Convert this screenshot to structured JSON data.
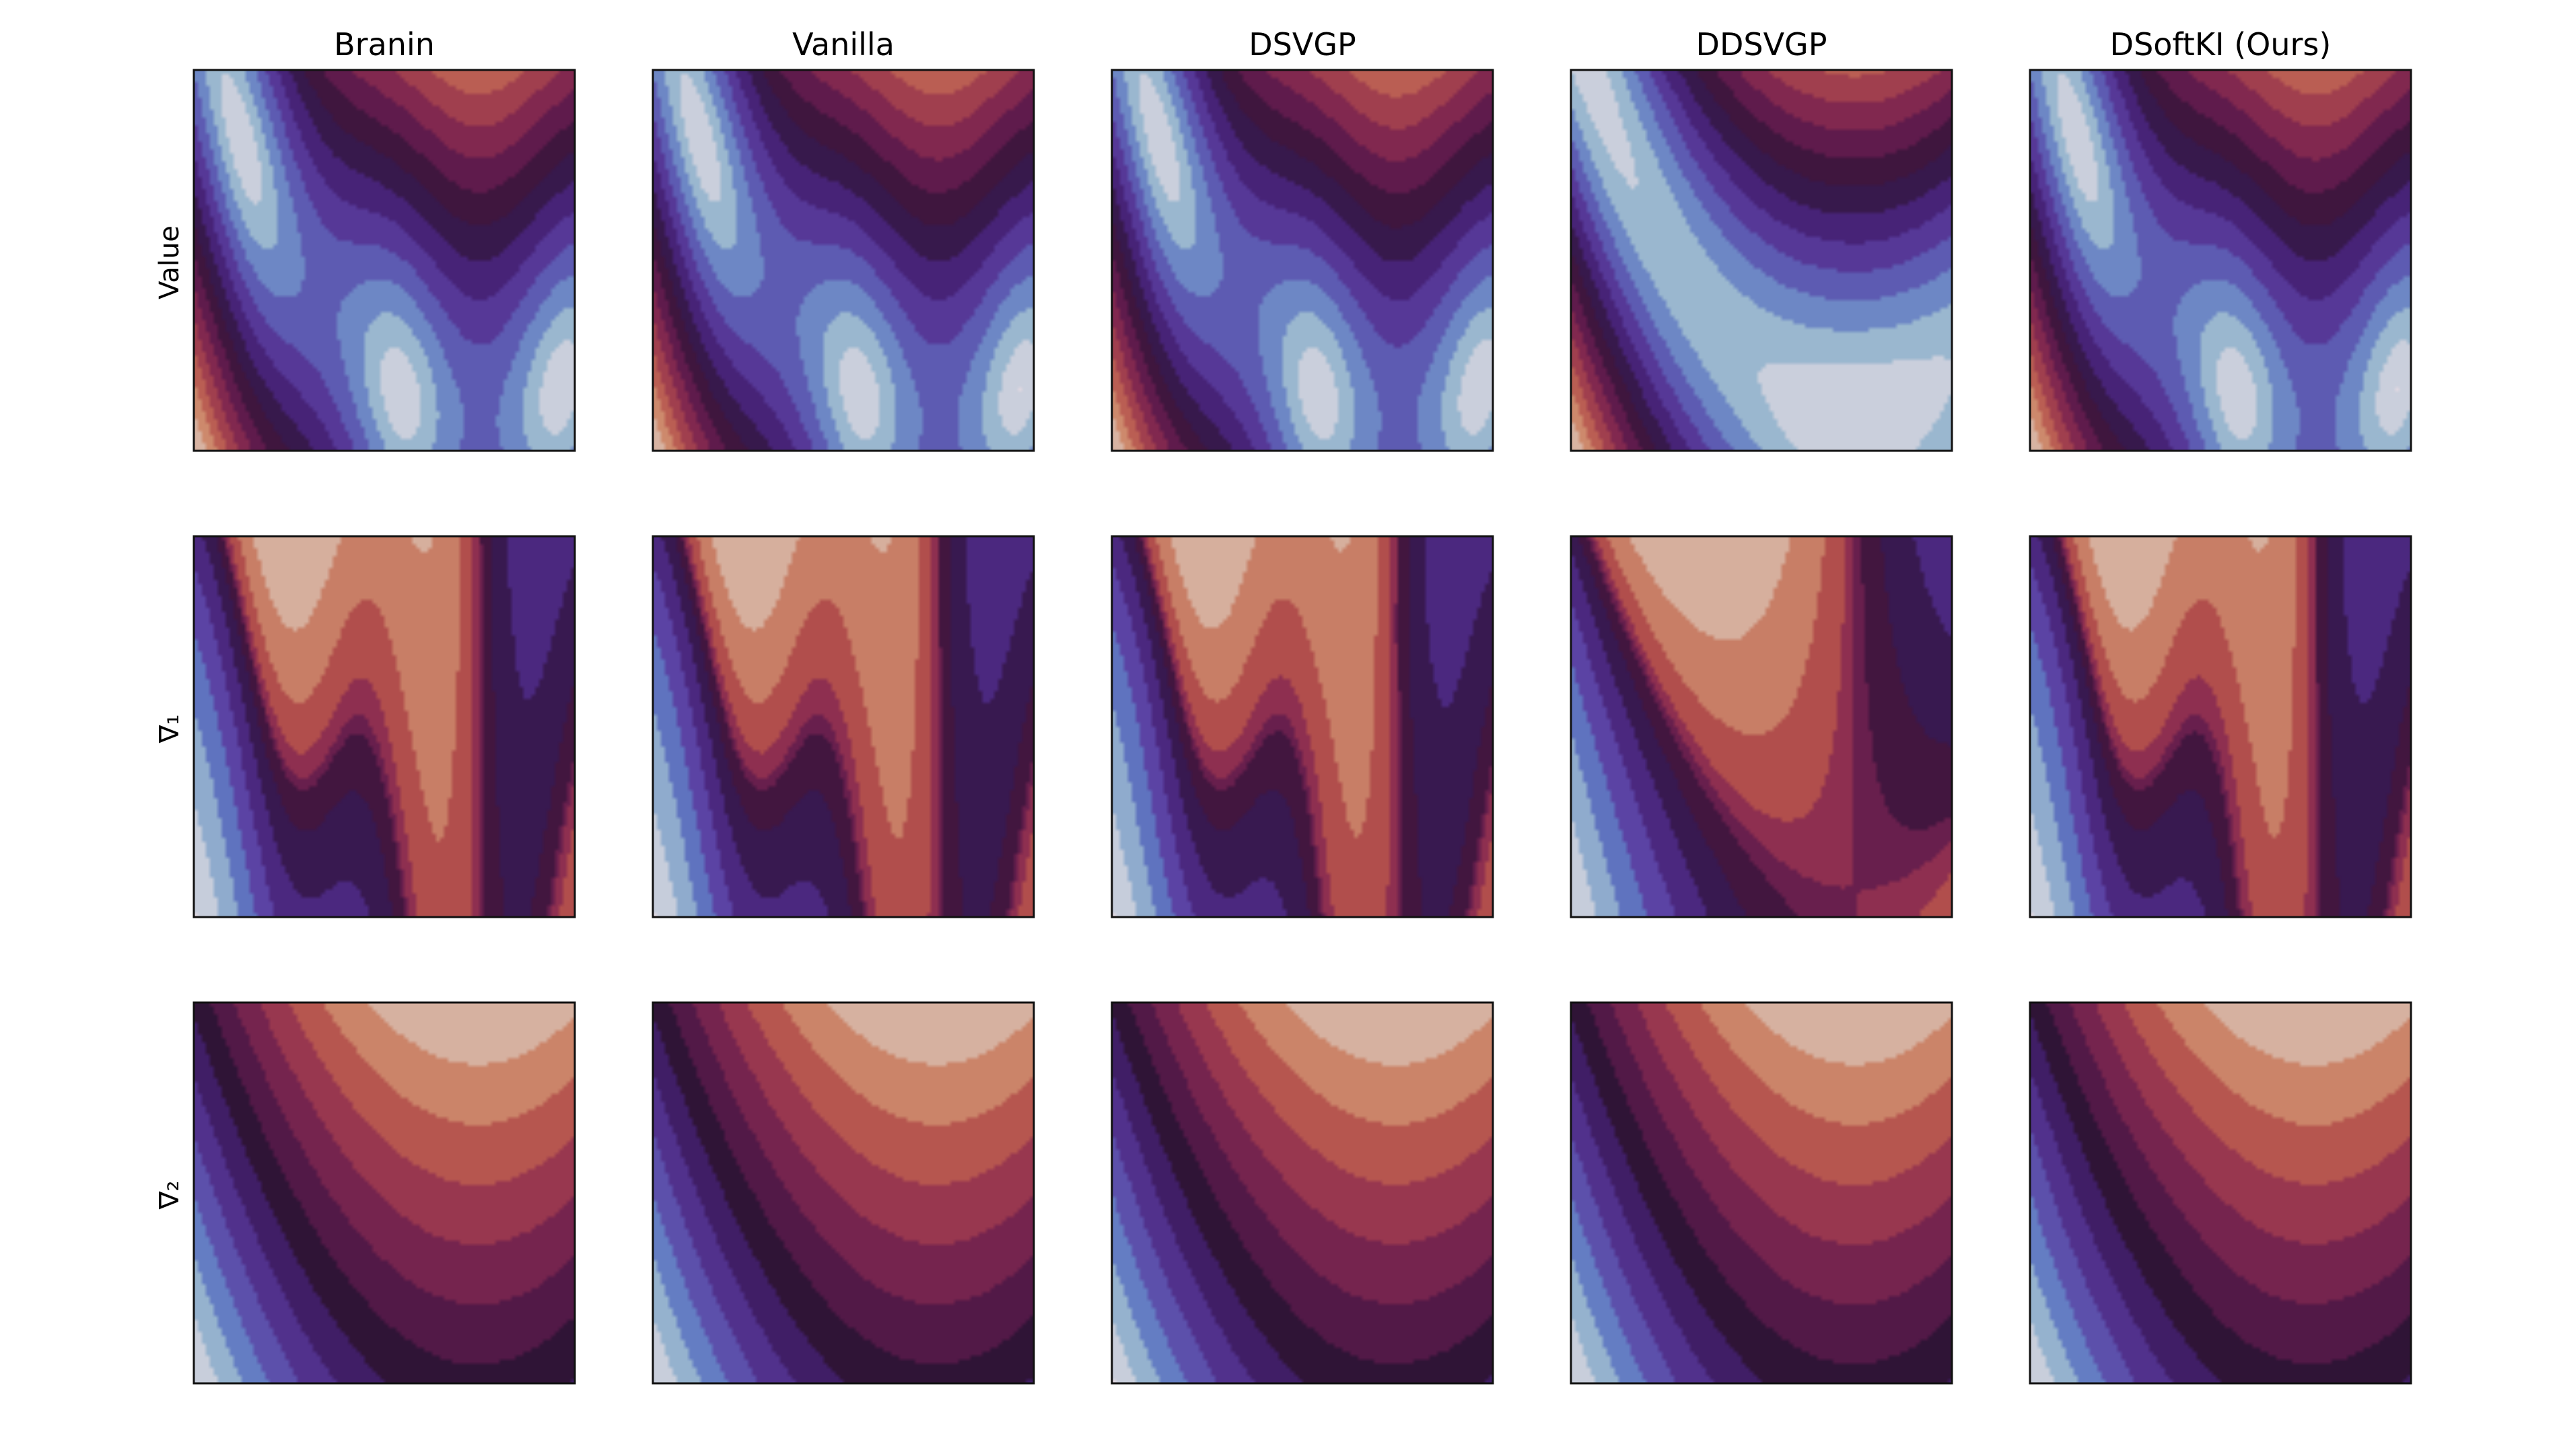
{
  "chart_data": {
    "type": "heatmap",
    "title": "",
    "columns": [
      "Branin",
      "Vanilla",
      "DSVGP",
      "DDSVGP",
      "DSoftKI (Ours)"
    ],
    "rows": [
      "Value",
      "∇₁",
      "∇₂"
    ],
    "xticks": "none",
    "yticks": "none",
    "colormap": "twilight_shifted",
    "colormap_stops": [
      "#e2d9e2",
      "#9fbcd0",
      "#5f78c2",
      "#5b3ea1",
      "#452174",
      "#2f1436",
      "#5c1a4c",
      "#8b2c50",
      "#b4514c",
      "#cf8d6e",
      "#dbc8bf"
    ],
    "panels": [
      [
        {
          "column": "Branin",
          "row": "Value",
          "field": "value",
          "levels": 14,
          "distortion": 0.0
        },
        {
          "column": "Vanilla",
          "row": "Value",
          "field": "value",
          "levels": 14,
          "distortion": 0.02
        },
        {
          "column": "DSVGP",
          "row": "Value",
          "field": "value",
          "levels": 14,
          "distortion": 0.05
        },
        {
          "column": "DDSVGP",
          "row": "Value",
          "field": "value_smooth",
          "levels": 14,
          "distortion": 0.0
        },
        {
          "column": "DSoftKI (Ours)",
          "row": "Value",
          "field": "value",
          "levels": 14,
          "distortion": 0.02
        }
      ],
      [
        {
          "column": "Branin",
          "row": "∇₁",
          "field": "grad1",
          "levels": 12,
          "distortion": 0.0
        },
        {
          "column": "Vanilla",
          "row": "∇₁",
          "field": "grad1",
          "levels": 12,
          "distortion": 0.03
        },
        {
          "column": "DSVGP",
          "row": "∇₁",
          "field": "grad1",
          "levels": 12,
          "distortion": 0.08
        },
        {
          "column": "DDSVGP",
          "row": "∇₁",
          "field": "grad1_smooth",
          "levels": 12,
          "distortion": 0.0
        },
        {
          "column": "DSoftKI (Ours)",
          "row": "∇₁",
          "field": "grad1",
          "levels": 12,
          "distortion": 0.06
        }
      ],
      [
        {
          "column": "Branin",
          "row": "∇₂",
          "field": "grad2",
          "levels": 13,
          "distortion": 0.0
        },
        {
          "column": "Vanilla",
          "row": "∇₂",
          "field": "grad2",
          "levels": 13,
          "distortion": 0.02
        },
        {
          "column": "DSVGP",
          "row": "∇₂",
          "field": "grad2",
          "levels": 13,
          "distortion": 0.05
        },
        {
          "column": "DDSVGP",
          "row": "∇₂",
          "field": "grad2",
          "levels": 13,
          "distortion": 0.01
        },
        {
          "column": "DSoftKI (Ours)",
          "row": "∇₂",
          "field": "grad2",
          "levels": 13,
          "distortion": 0.06
        }
      ]
    ]
  }
}
